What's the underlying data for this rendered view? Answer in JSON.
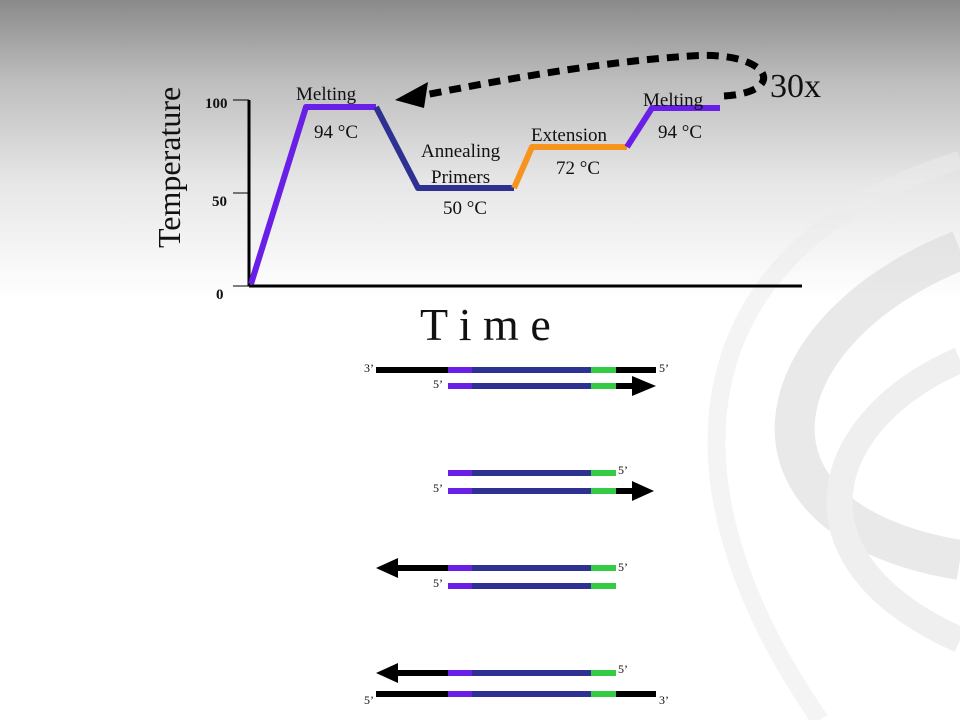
{
  "chart": {
    "ylabel": "Temperature",
    "xlabel": "T i m e",
    "ticks": {
      "t0": "0",
      "t50": "50",
      "t100": "100"
    },
    "cycles": "30x",
    "steps": {
      "melting": {
        "label": "Melting",
        "temp": "94 °C"
      },
      "annealing": {
        "label1": "Annealing",
        "label2": "Primers",
        "temp": "50 °C"
      },
      "extension": {
        "label": "Extension",
        "temp": "72 °C"
      },
      "melting2": {
        "label": "Melting",
        "temp": "94 °C"
      }
    }
  },
  "strands": {
    "primes": {
      "three": "3’",
      "five": "5’"
    }
  },
  "colors": {
    "melting": "#6a1fe6",
    "annealing": "#2e3192",
    "extension": "#f7941d",
    "primer_green": "#33cc44",
    "strand_black": "#000000"
  }
}
